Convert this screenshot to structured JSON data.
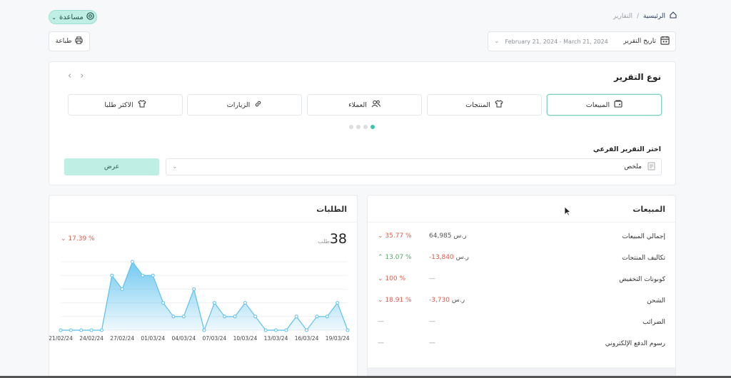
{
  "header": {
    "help_label": "مساعدة",
    "breadcrumb": {
      "home": "الرئيسية",
      "separator": "/",
      "current": "التقارير"
    },
    "print_label": "طباعة",
    "date_label": "تاريخ التقرير",
    "date_range": "February 21, 2024 - March 21, 2024"
  },
  "report": {
    "title": "نوع التقرير",
    "types": [
      {
        "label": "المبيعات",
        "icon": "sales-icon"
      },
      {
        "label": "المنتجات",
        "icon": "shirt-icon"
      },
      {
        "label": "العملاء",
        "icon": "users-icon"
      },
      {
        "label": "الزيارات",
        "icon": "link-icon"
      },
      {
        "label": "الاكثر طلبا",
        "icon": "shirt-icon"
      }
    ],
    "sub_label": "اختر التقرير الفرعي",
    "sub_value": "ملخص",
    "view_label": "عرض"
  },
  "orders": {
    "title": "الطلبات",
    "count": "38",
    "unit": "طلب",
    "change": "17.39 %"
  },
  "sales": {
    "title": "المبيعات",
    "rows": [
      {
        "name": "إجمالي المبيعات",
        "amount": "64,985",
        "currency": "ر.س",
        "change": "35.77 %",
        "trend": "down"
      },
      {
        "name": "تكاليف المنتجات",
        "amount": "-13,840",
        "currency": "ر.س",
        "change": "13.07 %",
        "trend": "up"
      },
      {
        "name": "كوبونات التخفيض",
        "amount": "—",
        "currency": "",
        "change": "100 %",
        "trend": "down"
      },
      {
        "name": "الشحن",
        "amount": "-3,730",
        "currency": "ر.س",
        "change": "18.91 %",
        "trend": "down"
      },
      {
        "name": "الضرائب",
        "amount": "—",
        "currency": "",
        "change": "—",
        "trend": "none"
      },
      {
        "name": "رسوم الدفع الإلكتروني",
        "amount": "—",
        "currency": "",
        "change": "—",
        "trend": "none"
      }
    ]
  },
  "chart_data": {
    "type": "area",
    "x_labels": [
      "21/02/24",
      "24/02/24",
      "27/02/24",
      "01/03/24",
      "04/03/24",
      "07/03/24",
      "10/03/24",
      "13/03/24",
      "16/03/24",
      "19/03/24"
    ],
    "values": [
      0,
      0,
      0,
      0,
      0,
      4,
      3,
      5,
      4,
      4,
      2,
      1,
      1,
      3,
      0,
      2,
      1,
      1,
      2,
      1,
      0,
      0,
      0,
      1,
      0,
      1,
      1,
      2,
      0
    ],
    "ylim": [
      0,
      5
    ],
    "grid": true,
    "color": "#5cc0ee"
  }
}
